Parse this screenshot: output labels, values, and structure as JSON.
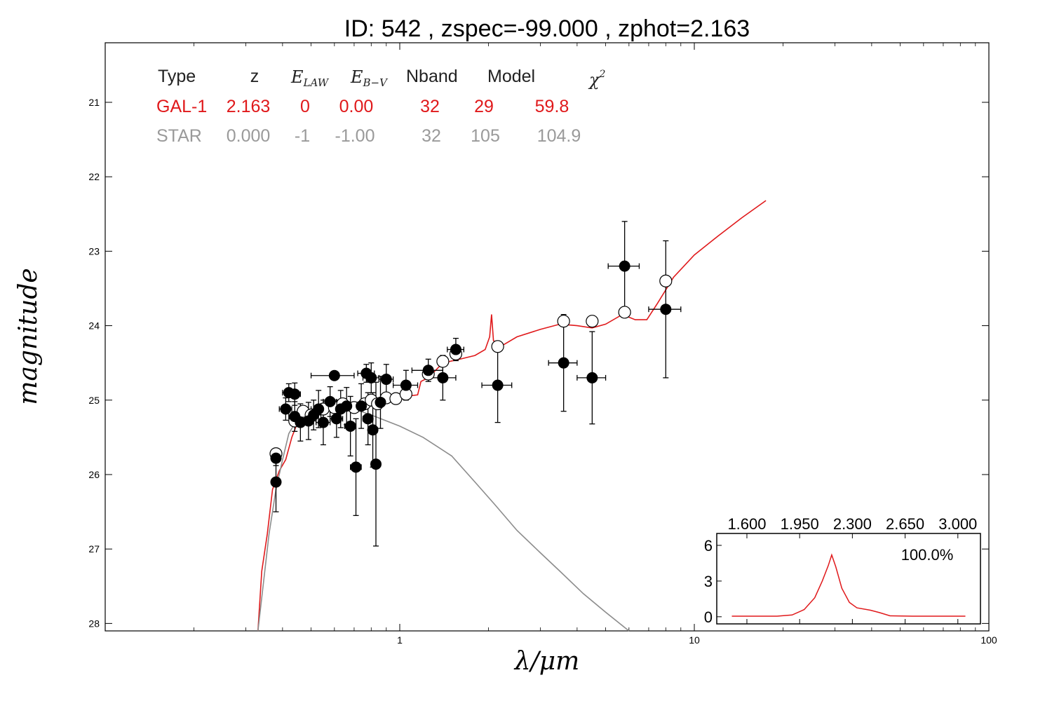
{
  "colors": {
    "galaxy": "#e0191b",
    "star": "#8c8c8c",
    "star_text": "#9a9a9a",
    "point": "#000000"
  },
  "chart_data": [
    {
      "type": "scatter",
      "title": "ID:  542   , zspec=-99.000 , zphot=2.163",
      "xlabel": "λ/μm",
      "ylabel": "magnitude",
      "xscale": "log",
      "xlim": [
        0.1,
        100
      ],
      "ylim": [
        28.1,
        20.2
      ],
      "x_tick_labels": [
        "1",
        "10",
        "100"
      ],
      "x_ticks": [
        1,
        10,
        100
      ],
      "y_ticks": [
        21,
        22,
        23,
        24,
        25,
        26,
        27,
        28
      ],
      "y_tick_labels": [
        "21",
        "22",
        "23",
        "24",
        "25",
        "26",
        "27",
        "28"
      ],
      "grid": false,
      "legend_table": {
        "headers": [
          "Type",
          "z",
          "E_LAW",
          "E_B-V",
          "Nband",
          "Model",
          "χ2"
        ],
        "rows": [
          {
            "type": "GAL-1",
            "z": "2.163",
            "elaw": "0",
            "ebv": "0.00",
            "nband": "32",
            "model": "29",
            "chi2": "59.8"
          },
          {
            "type": "STAR",
            "z": "0.000",
            "elaw": "-1",
            "ebv": "-1.00",
            "nband": "32",
            "model": "105",
            "chi2": "104.9"
          }
        ]
      },
      "series": [
        {
          "name": "GAL-1",
          "kind": "line",
          "points": [
            [
              0.33,
              28.1
            ],
            [
              0.34,
              27.3
            ],
            [
              0.355,
              26.8
            ],
            [
              0.37,
              26.2
            ],
            [
              0.39,
              25.95
            ],
            [
              0.41,
              25.8
            ],
            [
              0.43,
              25.5
            ],
            [
              0.45,
              25.3
            ],
            [
              0.48,
              25.25
            ],
            [
              0.52,
              25.2
            ],
            [
              0.56,
              25.15
            ],
            [
              0.62,
              25.1
            ],
            [
              0.7,
              25.08
            ],
            [
              0.8,
              25.02
            ],
            [
              0.9,
              24.98
            ],
            [
              1.0,
              24.96
            ],
            [
              1.15,
              24.93
            ],
            [
              1.18,
              24.75
            ],
            [
              1.25,
              24.7
            ],
            [
              1.4,
              24.5
            ],
            [
              1.6,
              24.45
            ],
            [
              1.8,
              24.4
            ],
            [
              1.95,
              24.32
            ],
            [
              2.02,
              24.15
            ],
            [
              2.05,
              23.85
            ],
            [
              2.08,
              24.2
            ],
            [
              2.2,
              24.28
            ],
            [
              2.5,
              24.15
            ],
            [
              3.0,
              24.05
            ],
            [
              3.5,
              23.98
            ],
            [
              4.0,
              24.0
            ],
            [
              4.5,
              24.03
            ],
            [
              5.0,
              23.98
            ],
            [
              5.7,
              23.85
            ],
            [
              6.3,
              23.92
            ],
            [
              6.9,
              23.92
            ],
            [
              7.5,
              23.7
            ],
            [
              8.5,
              23.35
            ],
            [
              10.0,
              23.05
            ],
            [
              12.0,
              22.8
            ],
            [
              14.5,
              22.55
            ],
            [
              17.5,
              22.32
            ]
          ]
        },
        {
          "name": "STAR",
          "kind": "line",
          "points": [
            [
              0.33,
              28.1
            ],
            [
              0.36,
              26.8
            ],
            [
              0.38,
              26.2
            ],
            [
              0.4,
              25.8
            ],
            [
              0.42,
              25.45
            ],
            [
              0.45,
              25.25
            ],
            [
              0.5,
              25.15
            ],
            [
              0.6,
              25.1
            ],
            [
              0.7,
              25.12
            ],
            [
              0.8,
              25.2
            ],
            [
              1.0,
              25.35
            ],
            [
              1.2,
              25.5
            ],
            [
              1.5,
              25.75
            ],
            [
              1.8,
              26.1
            ],
            [
              2.1,
              26.4
            ],
            [
              2.5,
              26.75
            ],
            [
              3.0,
              27.05
            ],
            [
              3.5,
              27.3
            ],
            [
              4.2,
              27.6
            ],
            [
              5.0,
              27.85
            ],
            [
              6.0,
              28.1
            ]
          ]
        },
        {
          "name": "observed",
          "kind": "points_filled",
          "points": [
            {
              "x": 0.38,
              "y": 25.78,
              "ey": 0.1,
              "ex": 0.01
            },
            {
              "x": 0.38,
              "y": 26.1,
              "ey": 0.4,
              "ex": 0.01
            },
            {
              "x": 0.41,
              "y": 25.12,
              "ey": 0.15,
              "ex": 0.02
            },
            {
              "x": 0.42,
              "y": 24.9,
              "ey": 0.12,
              "ex": 0.02
            },
            {
              "x": 0.44,
              "y": 24.92,
              "ey": 0.15,
              "ex": 0.02
            },
            {
              "x": 0.44,
              "y": 25.22,
              "ey": 0.2,
              "ex": 0.02
            },
            {
              "x": 0.46,
              "y": 25.3,
              "ey": 0.25,
              "ex": 0.03
            },
            {
              "x": 0.49,
              "y": 25.28,
              "ey": 0.25,
              "ex": 0.03
            },
            {
              "x": 0.51,
              "y": 25.2,
              "ey": 0.2,
              "ex": 0.03
            },
            {
              "x": 0.53,
              "y": 25.12,
              "ey": 0.25,
              "ex": 0.03
            },
            {
              "x": 0.55,
              "y": 25.3,
              "ey": 0.3,
              "ex": 0.03
            },
            {
              "x": 0.58,
              "y": 25.02,
              "ey": 0.2,
              "ex": 0.03
            },
            {
              "x": 0.6,
              "y": 24.67,
              "ey": 0.05,
              "ex": 0.1
            },
            {
              "x": 0.61,
              "y": 25.25,
              "ey": 0.25,
              "ex": 0.03
            },
            {
              "x": 0.63,
              "y": 25.12,
              "ey": 0.25,
              "ex": 0.03
            },
            {
              "x": 0.66,
              "y": 25.08,
              "ey": 0.25,
              "ex": 0.03
            },
            {
              "x": 0.68,
              "y": 25.35,
              "ey": 0.4,
              "ex": 0.03
            },
            {
              "x": 0.71,
              "y": 25.9,
              "ey": 0.65,
              "ex": 0.03
            },
            {
              "x": 0.74,
              "y": 25.08,
              "ey": 0.3,
              "ex": 0.03
            },
            {
              "x": 0.77,
              "y": 24.64,
              "ey": 0.12,
              "ex": 0.05
            },
            {
              "x": 0.78,
              "y": 25.25,
              "ey": 0.35,
              "ex": 0.03
            },
            {
              "x": 0.8,
              "y": 24.7,
              "ey": 0.2,
              "ex": 0.05
            },
            {
              "x": 0.81,
              "y": 25.4,
              "ey": 0.5,
              "ex": 0.03
            },
            {
              "x": 0.83,
              "y": 25.86,
              "ey": 1.1,
              "ex": 0.03
            },
            {
              "x": 0.86,
              "y": 25.03,
              "ey": 0.35,
              "ex": 0.03
            },
            {
              "x": 0.9,
              "y": 24.72,
              "ey": 0.2,
              "ex": 0.05
            },
            {
              "x": 1.05,
              "y": 24.8,
              "ey": 0.2,
              "ex": 0.1
            },
            {
              "x": 1.25,
              "y": 24.6,
              "ey": 0.15,
              "ex": 0.15
            },
            {
              "x": 1.4,
              "y": 24.7,
              "ey": 0.3,
              "ex": 0.15
            },
            {
              "x": 1.55,
              "y": 24.32,
              "ey": 0.15,
              "ex": 0.1
            },
            {
              "x": 2.15,
              "y": 24.8,
              "ey": 0.5,
              "ex": 0.25
            },
            {
              "x": 3.6,
              "y": 24.5,
              "ey": 0.65,
              "ex": 0.4
            },
            {
              "x": 4.5,
              "y": 24.7,
              "ey": 0.62,
              "ex": 0.5
            },
            {
              "x": 5.8,
              "y": 23.2,
              "ey": 0.6,
              "ex": 0.7
            },
            {
              "x": 8.0,
              "y": 23.78,
              "ey": 0.92,
              "ex": 1.0
            }
          ]
        },
        {
          "name": "model",
          "kind": "points_open",
          "points": [
            {
              "x": 0.38,
              "y": 25.72
            },
            {
              "x": 0.44,
              "y": 25.28
            },
            {
              "x": 0.47,
              "y": 25.15
            },
            {
              "x": 0.5,
              "y": 25.2
            },
            {
              "x": 0.55,
              "y": 25.12
            },
            {
              "x": 0.6,
              "y": 25.1
            },
            {
              "x": 0.64,
              "y": 25.05
            },
            {
              "x": 0.7,
              "y": 25.1
            },
            {
              "x": 0.76,
              "y": 25.05
            },
            {
              "x": 0.8,
              "y": 25.0
            },
            {
              "x": 0.84,
              "y": 25.05
            },
            {
              "x": 0.9,
              "y": 24.97
            },
            {
              "x": 0.97,
              "y": 24.98
            },
            {
              "x": 1.05,
              "y": 24.92
            },
            {
              "x": 1.25,
              "y": 24.65
            },
            {
              "x": 1.4,
              "y": 24.48
            },
            {
              "x": 1.55,
              "y": 24.38
            },
            {
              "x": 2.15,
              "y": 24.28
            },
            {
              "x": 3.6,
              "y": 23.94
            },
            {
              "x": 4.5,
              "y": 23.94
            },
            {
              "x": 5.8,
              "y": 23.82
            },
            {
              "x": 8.0,
              "y": 23.4
            }
          ]
        }
      ]
    },
    {
      "type": "line",
      "title": "",
      "annotation": "100.0%",
      "xlim": [
        1.4,
        3.15
      ],
      "x_ticks": [
        1.6,
        1.95,
        2.3,
        2.65,
        3.0
      ],
      "x_tick_labels": [
        "1.600",
        "1.950",
        "2.300",
        "2.650",
        "3.000"
      ],
      "ylim": [
        -0.6,
        7
      ],
      "y_ticks": [
        0,
        3,
        6
      ],
      "y_tick_labels": [
        "0",
        "3",
        "6"
      ],
      "series": [
        {
          "name": "PDF",
          "points": [
            [
              1.5,
              0.05
            ],
            [
              1.8,
              0.05
            ],
            [
              1.9,
              0.15
            ],
            [
              1.98,
              0.6
            ],
            [
              2.05,
              1.6
            ],
            [
              2.1,
              3.0
            ],
            [
              2.14,
              4.3
            ],
            [
              2.163,
              5.2
            ],
            [
              2.19,
              4.2
            ],
            [
              2.23,
              2.4
            ],
            [
              2.28,
              1.2
            ],
            [
              2.33,
              0.75
            ],
            [
              2.42,
              0.55
            ],
            [
              2.48,
              0.35
            ],
            [
              2.55,
              0.08
            ],
            [
              2.7,
              0.05
            ],
            [
              3.05,
              0.05
            ]
          ]
        }
      ]
    }
  ]
}
